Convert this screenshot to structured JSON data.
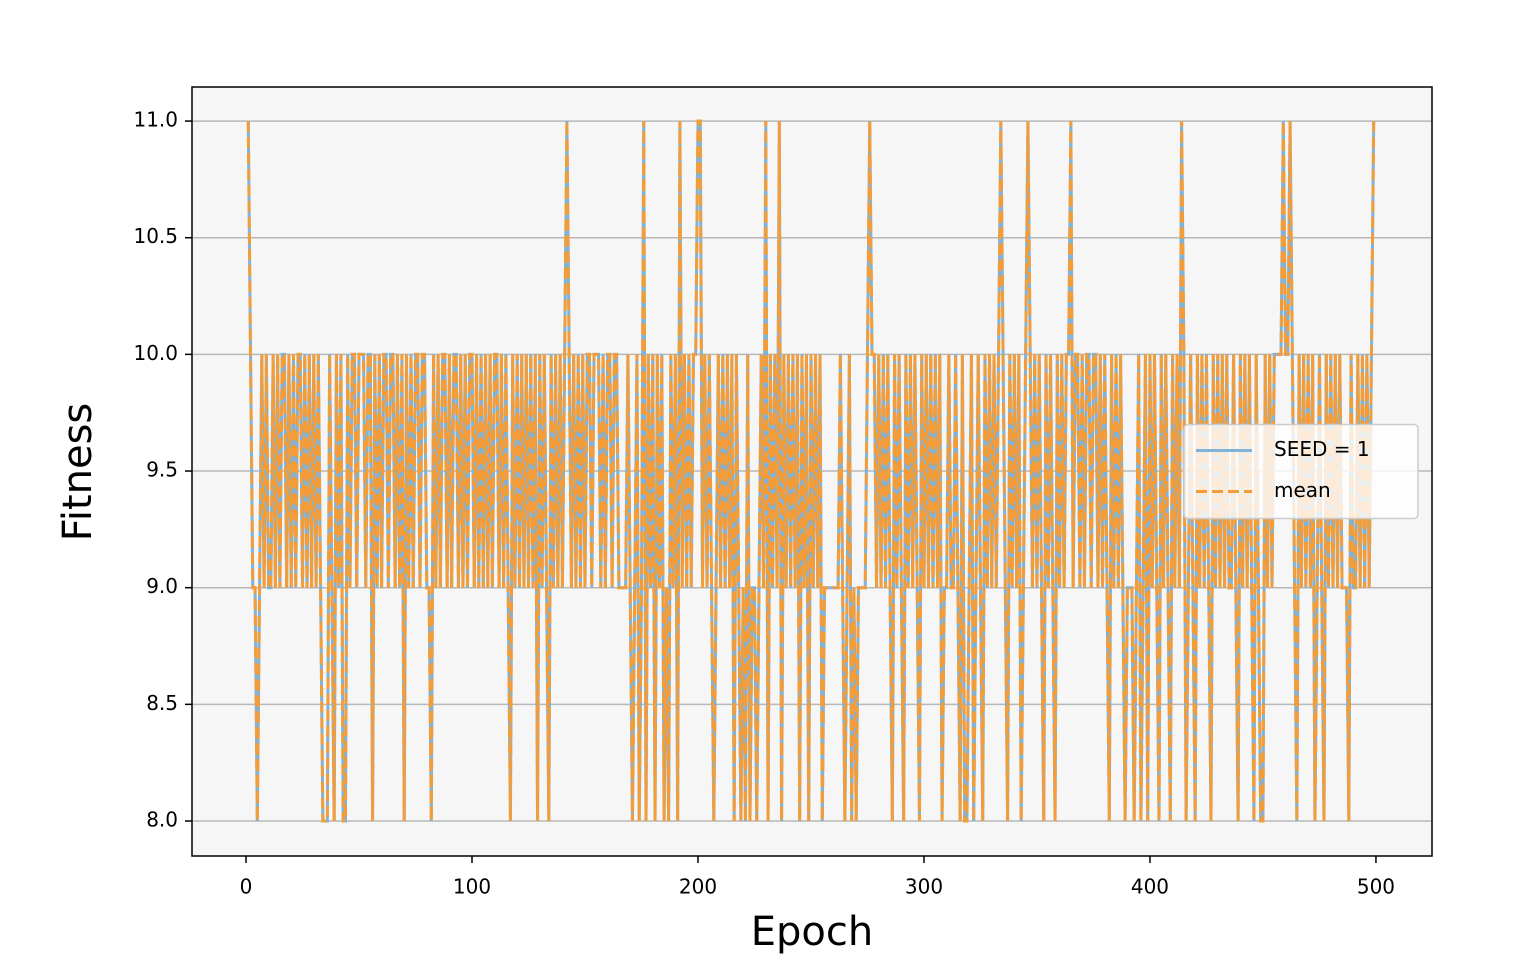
{
  "chart_data": {
    "type": "line",
    "xlabel": "Epoch",
    "ylabel": "Fitness",
    "xlim": [
      -23.9,
      524.8
    ],
    "xticks": [
      0,
      100,
      200,
      300,
      400,
      500
    ],
    "ylim": [
      7.85,
      11.146
    ],
    "yticks": [
      {
        "value": 8,
        "label": "8.0"
      },
      8.5,
      {
        "value": 9,
        "label": "9.0"
      },
      9.5,
      {
        "value": 10,
        "label": "10.0"
      },
      10.5,
      {
        "value": 11,
        "label": "11.0"
      }
    ],
    "grid": "y",
    "legend": "center right",
    "x": [
      1,
      2,
      3,
      4,
      5,
      6,
      7,
      8,
      9,
      10,
      11,
      12,
      13,
      14,
      15,
      16,
      17,
      18,
      19,
      20,
      21,
      22,
      23,
      24,
      25,
      26,
      27,
      28,
      29,
      30,
      31,
      32,
      33,
      34,
      35,
      36,
      37,
      38,
      39,
      40,
      41,
      42,
      43,
      44,
      45,
      46,
      47,
      48,
      49,
      50,
      51,
      52,
      53,
      54,
      55,
      56,
      57,
      58,
      59,
      60,
      61,
      62,
      63,
      64,
      65,
      66,
      67,
      68,
      69,
      70,
      71,
      72,
      73,
      74,
      75,
      76,
      77,
      78,
      79,
      80,
      81,
      82,
      83,
      84,
      85,
      86,
      87,
      88,
      89,
      90,
      91,
      92,
      93,
      94,
      95,
      96,
      97,
      98,
      99,
      100,
      101,
      102,
      103,
      104,
      105,
      106,
      107,
      108,
      109,
      110,
      111,
      112,
      113,
      114,
      115,
      116,
      117,
      118,
      119,
      120,
      121,
      122,
      123,
      124,
      125,
      126,
      127,
      128,
      129,
      130,
      131,
      132,
      133,
      134,
      135,
      136,
      137,
      138,
      139,
      140,
      141,
      142,
      143,
      144,
      145,
      146,
      147,
      148,
      149,
      150,
      151,
      152,
      153,
      154,
      155,
      156,
      157,
      158,
      159,
      160,
      161,
      162,
      163,
      164,
      165,
      166,
      167,
      168,
      169,
      170,
      171,
      172,
      173,
      174,
      175,
      176,
      177,
      178,
      179,
      180,
      181,
      182,
      183,
      184,
      185,
      186,
      187,
      188,
      189,
      190,
      191,
      192,
      193,
      194,
      195,
      196,
      197,
      198,
      199,
      200,
      201,
      202,
      203,
      204,
      205,
      206,
      207,
      208,
      209,
      210,
      211,
      212,
      213,
      214,
      215,
      216,
      217,
      218,
      219,
      220,
      221,
      222,
      223,
      224,
      225,
      226,
      227,
      228,
      229,
      230,
      231,
      232,
      233,
      234,
      235,
      236,
      237,
      238,
      239,
      240,
      241,
      242,
      243,
      244,
      245,
      246,
      247,
      248,
      249,
      250,
      251,
      252,
      253,
      254,
      255,
      256,
      257,
      258,
      259,
      260,
      261,
      262,
      263,
      264,
      265,
      266,
      267,
      268,
      269,
      270,
      271,
      272,
      273,
      274,
      275,
      276,
      277,
      278,
      279,
      280,
      281,
      282,
      283,
      284,
      285,
      286,
      287,
      288,
      289,
      290,
      291,
      292,
      293,
      294,
      295,
      296,
      297,
      298,
      299,
      300,
      301,
      302,
      303,
      304,
      305,
      306,
      307,
      308,
      309,
      310,
      311,
      312,
      313,
      314,
      315,
      316,
      317,
      318,
      319,
      320,
      321,
      322,
      323,
      324,
      325,
      326,
      327,
      328,
      329,
      330,
      331,
      332,
      333,
      334,
      335,
      336,
      337,
      338,
      339,
      340,
      341,
      342,
      343,
      344,
      345,
      346,
      347,
      348,
      349,
      350,
      351,
      352,
      353,
      354,
      355,
      356,
      357,
      358,
      359,
      360,
      361,
      362,
      363,
      364,
      365,
      366,
      367,
      368,
      369,
      370,
      371,
      372,
      373,
      374,
      375,
      376,
      377,
      378,
      379,
      380,
      381,
      382,
      383,
      384,
      385,
      386,
      387,
      388,
      389,
      390,
      391,
      392,
      393,
      394,
      395,
      396,
      397,
      398,
      399,
      400,
      401,
      402,
      403,
      404,
      405,
      406,
      407,
      408,
      409,
      410,
      411,
      412,
      413,
      414,
      415,
      416,
      417,
      418,
      419,
      420,
      421,
      422,
      423,
      424,
      425,
      426,
      427,
      428,
      429,
      430,
      431,
      432,
      433,
      434,
      435,
      436,
      437,
      438,
      439,
      440,
      441,
      442,
      443,
      444,
      445,
      446,
      447,
      448,
      449,
      450,
      451,
      452,
      453,
      454,
      455,
      456,
      457,
      458,
      459,
      460,
      461,
      462,
      463,
      464,
      465,
      466,
      467,
      468,
      469,
      470,
      471,
      472,
      473,
      474,
      475,
      476,
      477,
      478,
      479,
      480,
      481,
      482,
      483,
      484,
      485,
      486,
      487,
      488,
      489,
      490,
      491,
      492,
      493,
      494,
      495,
      496,
      497,
      498,
      499
    ],
    "series": [
      {
        "name": "SEED = 1",
        "color": "#7fb2d8",
        "dash": false,
        "values": [
          11,
          10,
          9,
          9,
          8,
          9,
          10,
          9,
          10,
          9,
          9,
          10,
          9,
          10,
          9,
          10,
          10,
          9,
          10,
          9,
          10,
          9,
          10,
          10,
          9,
          10,
          9,
          10,
          9,
          10,
          9,
          10,
          9,
          8,
          8,
          8,
          10,
          9,
          8,
          10,
          9,
          10,
          8,
          8,
          10,
          9,
          10,
          10,
          9,
          10,
          10,
          10,
          9,
          10,
          10,
          8,
          10,
          9,
          10,
          9,
          10,
          10,
          9,
          10,
          10,
          9,
          10,
          9,
          10,
          8,
          10,
          9,
          10,
          9,
          10,
          10,
          9,
          10,
          10,
          9,
          9,
          8,
          10,
          9,
          10,
          9,
          10,
          10,
          9,
          10,
          9,
          10,
          10,
          9,
          10,
          9,
          10,
          9,
          10,
          10,
          9,
          10,
          9,
          10,
          9,
          10,
          9,
          10,
          9,
          10,
          10,
          9,
          10,
          9,
          10,
          9,
          8,
          10,
          9,
          10,
          9,
          10,
          9,
          10,
          9,
          10,
          9,
          10,
          8,
          10,
          9,
          10,
          9,
          8,
          10,
          9,
          10,
          9,
          10,
          9,
          10,
          11,
          10,
          9,
          10,
          9,
          10,
          9,
          10,
          9,
          10,
          10,
          9,
          10,
          10,
          10,
          9,
          10,
          9,
          10,
          10,
          9,
          10,
          10,
          9,
          9,
          9,
          9,
          10,
          9,
          8,
          9,
          10,
          8,
          9,
          11,
          8,
          10,
          9,
          10,
          8,
          10,
          9,
          10,
          8,
          9,
          8,
          10,
          9,
          10,
          8,
          11,
          9,
          10,
          9,
          10,
          9,
          10,
          10,
          11,
          11,
          9,
          10,
          9,
          10,
          9,
          8,
          9,
          10,
          9,
          10,
          9,
          10,
          9,
          10,
          8,
          10,
          9,
          8,
          9,
          8,
          10,
          8,
          9,
          9,
          8,
          9,
          10,
          9,
          11,
          8,
          10,
          9,
          10,
          9,
          11,
          8,
          10,
          9,
          10,
          9,
          10,
          9,
          10,
          8,
          10,
          9,
          10,
          8,
          10,
          9,
          10,
          9,
          10,
          8,
          9,
          9,
          9,
          9,
          9,
          9,
          9,
          10,
          9,
          8,
          9,
          10,
          8,
          9,
          8,
          9,
          9,
          9,
          9,
          10,
          11,
          10,
          10,
          9,
          10,
          9,
          10,
          9,
          10,
          9,
          8,
          10,
          9,
          10,
          9,
          8,
          10,
          9,
          10,
          9,
          10,
          9,
          8,
          10,
          9,
          10,
          9,
          10,
          9,
          10,
          9,
          10,
          8,
          9,
          9,
          10,
          9,
          9,
          10,
          9,
          8,
          10,
          8,
          8,
          9,
          10,
          8,
          9,
          10,
          9,
          8,
          10,
          9,
          10,
          9,
          10,
          9,
          10,
          11,
          10,
          9,
          8,
          10,
          9,
          10,
          9,
          10,
          8,
          9,
          10,
          11,
          10,
          9,
          10,
          9,
          10,
          9,
          8,
          10,
          9,
          10,
          9,
          8,
          10,
          9,
          10,
          9,
          10,
          10,
          11,
          9,
          10,
          10,
          9,
          10,
          9,
          10,
          10,
          9,
          10,
          10,
          9,
          10,
          9,
          10,
          9,
          8,
          10,
          9,
          10,
          9,
          10,
          9,
          8,
          9,
          9,
          9,
          8,
          9,
          10,
          8,
          9,
          10,
          8,
          10,
          9,
          10,
          9,
          8,
          10,
          9,
          10,
          9,
          8,
          10,
          9,
          10,
          9,
          11,
          10,
          8,
          9,
          10,
          9,
          8,
          10,
          9,
          10,
          9,
          10,
          9,
          8,
          10,
          9,
          10,
          9,
          10,
          9,
          10,
          9,
          9,
          10,
          9,
          8,
          10,
          9,
          10,
          9,
          10,
          9,
          8,
          10,
          9,
          8,
          8,
          10,
          9,
          10,
          9,
          10,
          10,
          10,
          10,
          11,
          10,
          10,
          11,
          10,
          9,
          8,
          10,
          9,
          10,
          9,
          10,
          9,
          10,
          8,
          9,
          10,
          9,
          8,
          10,
          9,
          10,
          9,
          10,
          9,
          10,
          9,
          9,
          9,
          8,
          10,
          9,
          9,
          10,
          9,
          10,
          9,
          10,
          9,
          10,
          11
        ]
      },
      {
        "name": "mean",
        "color": "#f39c3a",
        "dash": true,
        "values": [
          11,
          10,
          9,
          9,
          8,
          9,
          10,
          9,
          10,
          9,
          9,
          10,
          9,
          10,
          9,
          10,
          10,
          9,
          10,
          9,
          10,
          9,
          10,
          10,
          9,
          10,
          9,
          10,
          9,
          10,
          9,
          10,
          9,
          8,
          8,
          8,
          10,
          9,
          8,
          10,
          9,
          10,
          8,
          8,
          10,
          9,
          10,
          10,
          9,
          10,
          10,
          10,
          9,
          10,
          10,
          8,
          10,
          9,
          10,
          9,
          10,
          10,
          9,
          10,
          10,
          9,
          10,
          9,
          10,
          8,
          10,
          9,
          10,
          9,
          10,
          10,
          9,
          10,
          10,
          9,
          9,
          8,
          10,
          9,
          10,
          9,
          10,
          10,
          9,
          10,
          9,
          10,
          10,
          9,
          10,
          9,
          10,
          9,
          10,
          10,
          9,
          10,
          9,
          10,
          9,
          10,
          9,
          10,
          9,
          10,
          10,
          9,
          10,
          9,
          10,
          9,
          8,
          10,
          9,
          10,
          9,
          10,
          9,
          10,
          9,
          10,
          9,
          10,
          8,
          10,
          9,
          10,
          9,
          8,
          10,
          9,
          10,
          9,
          10,
          9,
          10,
          11,
          10,
          9,
          10,
          9,
          10,
          9,
          10,
          9,
          10,
          10,
          9,
          10,
          10,
          10,
          9,
          10,
          9,
          10,
          10,
          9,
          10,
          10,
          9,
          9,
          9,
          9,
          10,
          9,
          8,
          9,
          10,
          8,
          9,
          11,
          8,
          10,
          9,
          10,
          8,
          10,
          9,
          10,
          8,
          9,
          8,
          10,
          9,
          10,
          8,
          11,
          9,
          10,
          9,
          10,
          9,
          10,
          10,
          11,
          11,
          9,
          10,
          9,
          10,
          9,
          8,
          9,
          10,
          9,
          10,
          9,
          10,
          9,
          10,
          8,
          10,
          9,
          8,
          9,
          8,
          10,
          8,
          9,
          9,
          8,
          9,
          10,
          9,
          11,
          8,
          10,
          9,
          10,
          9,
          11,
          8,
          10,
          9,
          10,
          9,
          10,
          9,
          10,
          8,
          10,
          9,
          10,
          8,
          10,
          9,
          10,
          9,
          10,
          8,
          9,
          9,
          9,
          9,
          9,
          9,
          9,
          10,
          9,
          8,
          9,
          10,
          8,
          9,
          8,
          9,
          9,
          9,
          9,
          10,
          11,
          10,
          10,
          9,
          10,
          9,
          10,
          9,
          10,
          9,
          8,
          10,
          9,
          10,
          9,
          8,
          10,
          9,
          10,
          9,
          10,
          9,
          8,
          10,
          9,
          10,
          9,
          10,
          9,
          10,
          9,
          10,
          8,
          9,
          9,
          10,
          9,
          9,
          10,
          9,
          8,
          10,
          8,
          8,
          9,
          10,
          8,
          9,
          10,
          9,
          8,
          10,
          9,
          10,
          9,
          10,
          9,
          10,
          11,
          10,
          9,
          8,
          10,
          9,
          10,
          9,
          10,
          8,
          9,
          10,
          11,
          10,
          9,
          10,
          9,
          10,
          9,
          8,
          10,
          9,
          10,
          9,
          8,
          10,
          9,
          10,
          9,
          10,
          10,
          11,
          9,
          10,
          10,
          9,
          10,
          9,
          10,
          10,
          9,
          10,
          10,
          9,
          10,
          9,
          10,
          9,
          8,
          10,
          9,
          10,
          9,
          10,
          9,
          8,
          9,
          9,
          9,
          8,
          9,
          10,
          8,
          9,
          10,
          8,
          10,
          9,
          10,
          9,
          8,
          10,
          9,
          10,
          9,
          8,
          10,
          9,
          10,
          9,
          11,
          10,
          8,
          9,
          10,
          9,
          8,
          10,
          9,
          10,
          9,
          10,
          9,
          8,
          10,
          9,
          10,
          9,
          10,
          9,
          10,
          9,
          9,
          10,
          9,
          8,
          10,
          9,
          10,
          9,
          10,
          9,
          8,
          10,
          9,
          8,
          8,
          10,
          9,
          10,
          9,
          10,
          10,
          10,
          10,
          11,
          10,
          10,
          11,
          10,
          9,
          8,
          10,
          9,
          10,
          9,
          10,
          9,
          10,
          8,
          9,
          10,
          9,
          8,
          10,
          9,
          10,
          9,
          10,
          9,
          10,
          9,
          9,
          9,
          8,
          10,
          9,
          9,
          10,
          9,
          10,
          9,
          10,
          9,
          10,
          11
        ]
      }
    ]
  }
}
